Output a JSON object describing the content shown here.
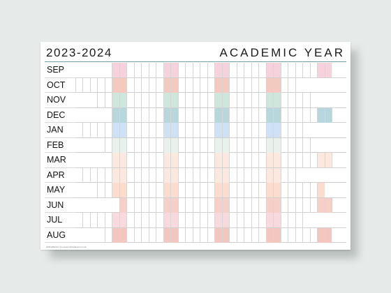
{
  "poster": {
    "title_left": "2023-2024",
    "title_right": "ACADEMIC YEAR",
    "footer": "OnlinePlanner Co   www.onlineplanner.co.uk"
  },
  "months": [
    {
      "label": "SEP",
      "start": 5,
      "days": 30,
      "color": "#f6d3dc"
    },
    {
      "label": "OCT",
      "start": 0,
      "days": 31,
      "color": "#f3c9c0"
    },
    {
      "label": "NOV",
      "start": 3,
      "days": 30,
      "color": "#cfe6dc"
    },
    {
      "label": "DEC",
      "start": 5,
      "days": 31,
      "color": "#b7d7dd"
    },
    {
      "label": "JAN",
      "start": 1,
      "days": 31,
      "color": "#cfe1f4"
    },
    {
      "label": "FEB",
      "start": 4,
      "days": 29,
      "color": "#e9f1ec"
    },
    {
      "label": "MAR",
      "start": 5,
      "days": 31,
      "color": "#fbe9df"
    },
    {
      "label": "APR",
      "start": 1,
      "days": 30,
      "color": "#fbe9df"
    },
    {
      "label": "MAY",
      "start": 3,
      "days": 31,
      "color": "#fbdccf"
    },
    {
      "label": "JUN",
      "start": 6,
      "days": 30,
      "color": "#f6cfc8"
    },
    {
      "label": "JUL",
      "start": 1,
      "days": 31,
      "color": "#f8d9de"
    },
    {
      "label": "AUG",
      "start": 4,
      "days": 31,
      "color": "#f3c7c0"
    }
  ],
  "colors": {
    "gridline": "#d6d6d6",
    "title_rule": "#6fa0a8",
    "background": "#e6ebe9"
  }
}
